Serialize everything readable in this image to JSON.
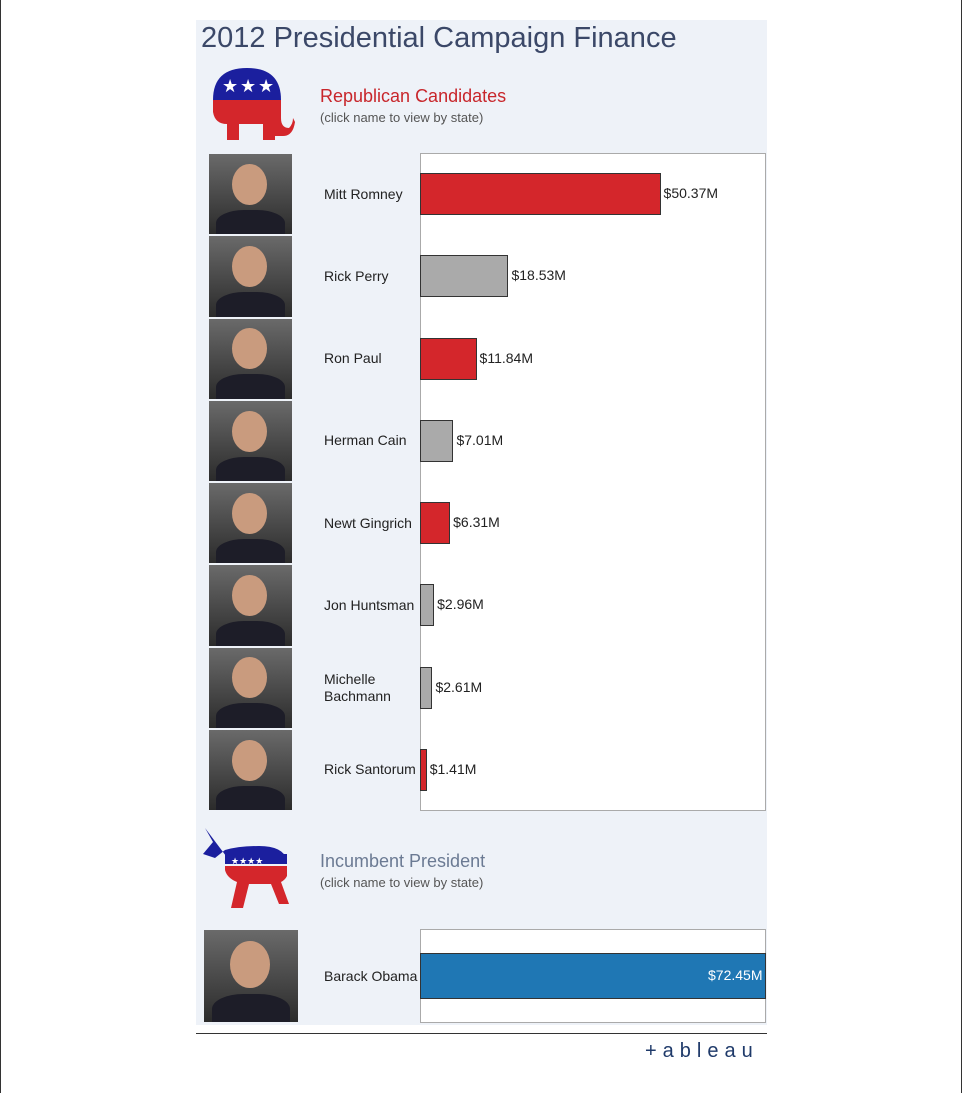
{
  "title": "2012 Presidential Campaign Finance",
  "brand": "+ableau",
  "chart_data": [
    {
      "type": "bar",
      "orientation": "horizontal",
      "heading": "Republican Candidates",
      "subheading": "(click name to view by state)",
      "categories": [
        "Mitt Romney",
        "Rick Perry",
        "Ron Paul",
        "Herman Cain",
        "Newt Gingrich",
        "Jon Huntsman",
        "Michelle Bachmann",
        "Rick Santorum"
      ],
      "values": [
        50.37,
        18.53,
        11.84,
        7.01,
        6.31,
        2.96,
        2.61,
        1.41
      ],
      "value_labels": [
        "$50.37M",
        "$18.53M",
        "$11.84M",
        "$7.01M",
        "$6.31M",
        "$2.96M",
        "$2.61M",
        "$1.41M"
      ],
      "colors": [
        "#d4262b",
        "#aaaaaa",
        "#d4262b",
        "#aaaaaa",
        "#d4262b",
        "#aaaaaa",
        "#aaaaaa",
        "#d4262b"
      ]
    },
    {
      "type": "bar",
      "orientation": "horizontal",
      "heading": "Incumbent President",
      "subheading": "(click name to view by state)",
      "categories": [
        "Barack Obama"
      ],
      "values": [
        72.45
      ],
      "value_labels": [
        "$72.45M"
      ],
      "colors": [
        "#1f77b4"
      ]
    }
  ]
}
